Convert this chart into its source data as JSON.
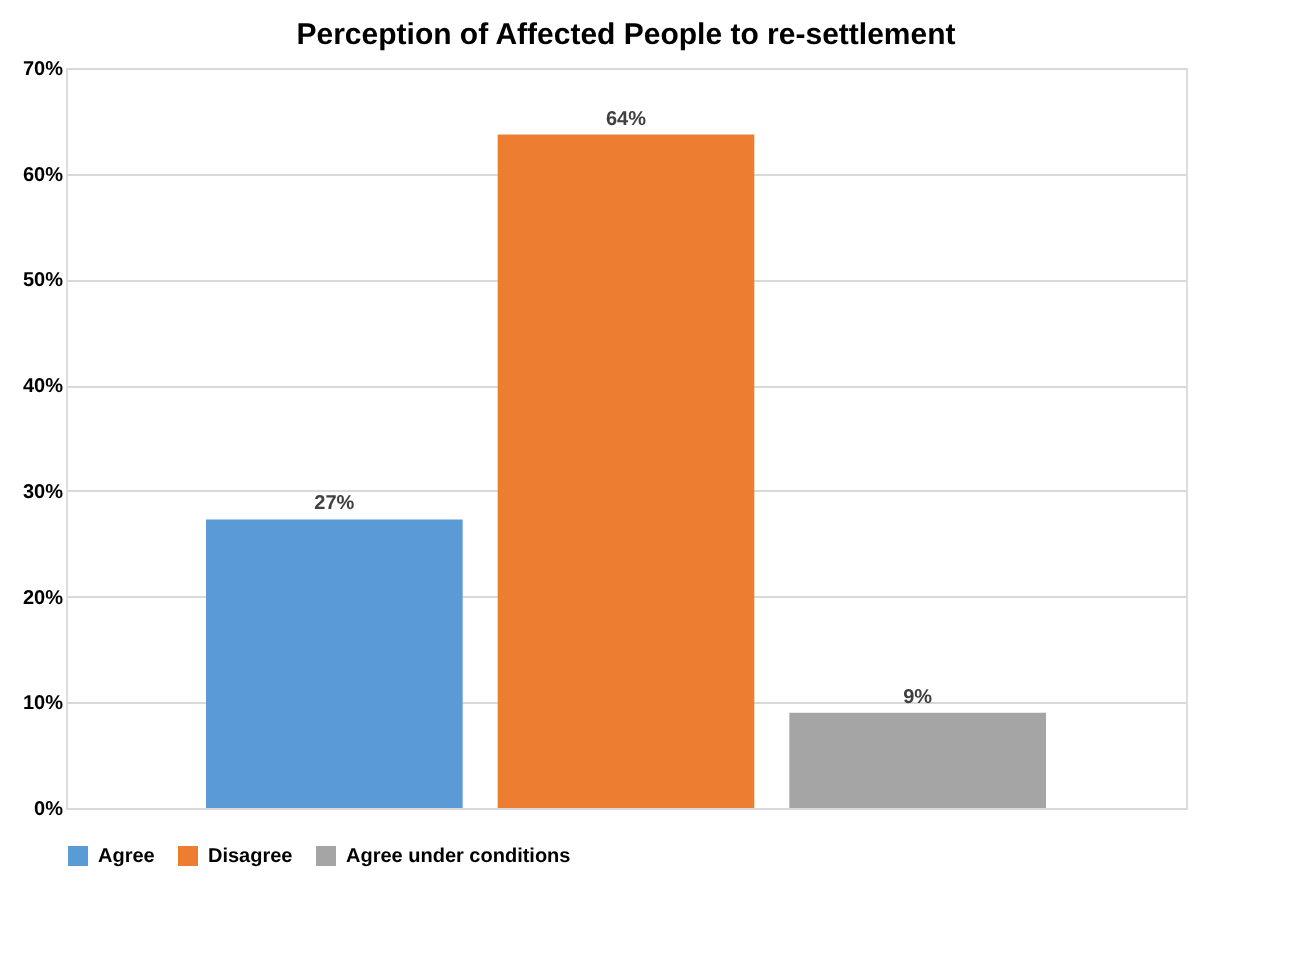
{
  "chart_data": {
    "type": "bar",
    "title": "Perception of Affected People to re-settlement",
    "categories": [
      null
    ],
    "series": [
      {
        "name": "Agree",
        "color": "#5b9bd5",
        "values": [
          27.3
        ],
        "value_labels": [
          "27%"
        ]
      },
      {
        "name": "Disagree",
        "color": "#ed7d31",
        "values": [
          63.7
        ],
        "value_labels": [
          "64%"
        ]
      },
      {
        "name": "Agree under conditions",
        "color": "#a5a5a5",
        "values": [
          9.0
        ],
        "value_labels": [
          "9%"
        ]
      }
    ],
    "ylim": [
      0,
      70
    ],
    "yticks": [
      {
        "value": 0,
        "label": "0%"
      },
      {
        "value": 10,
        "label": "10%"
      },
      {
        "value": 20,
        "label": "20%"
      },
      {
        "value": 30,
        "label": "30%"
      },
      {
        "value": 40,
        "label": "40%"
      },
      {
        "value": 50,
        "label": "50%"
      },
      {
        "value": 60,
        "label": "60%"
      },
      {
        "value": 70,
        "label": "70%"
      }
    ],
    "grid": "y",
    "legend": "bottom",
    "tick_labels": "y"
  }
}
